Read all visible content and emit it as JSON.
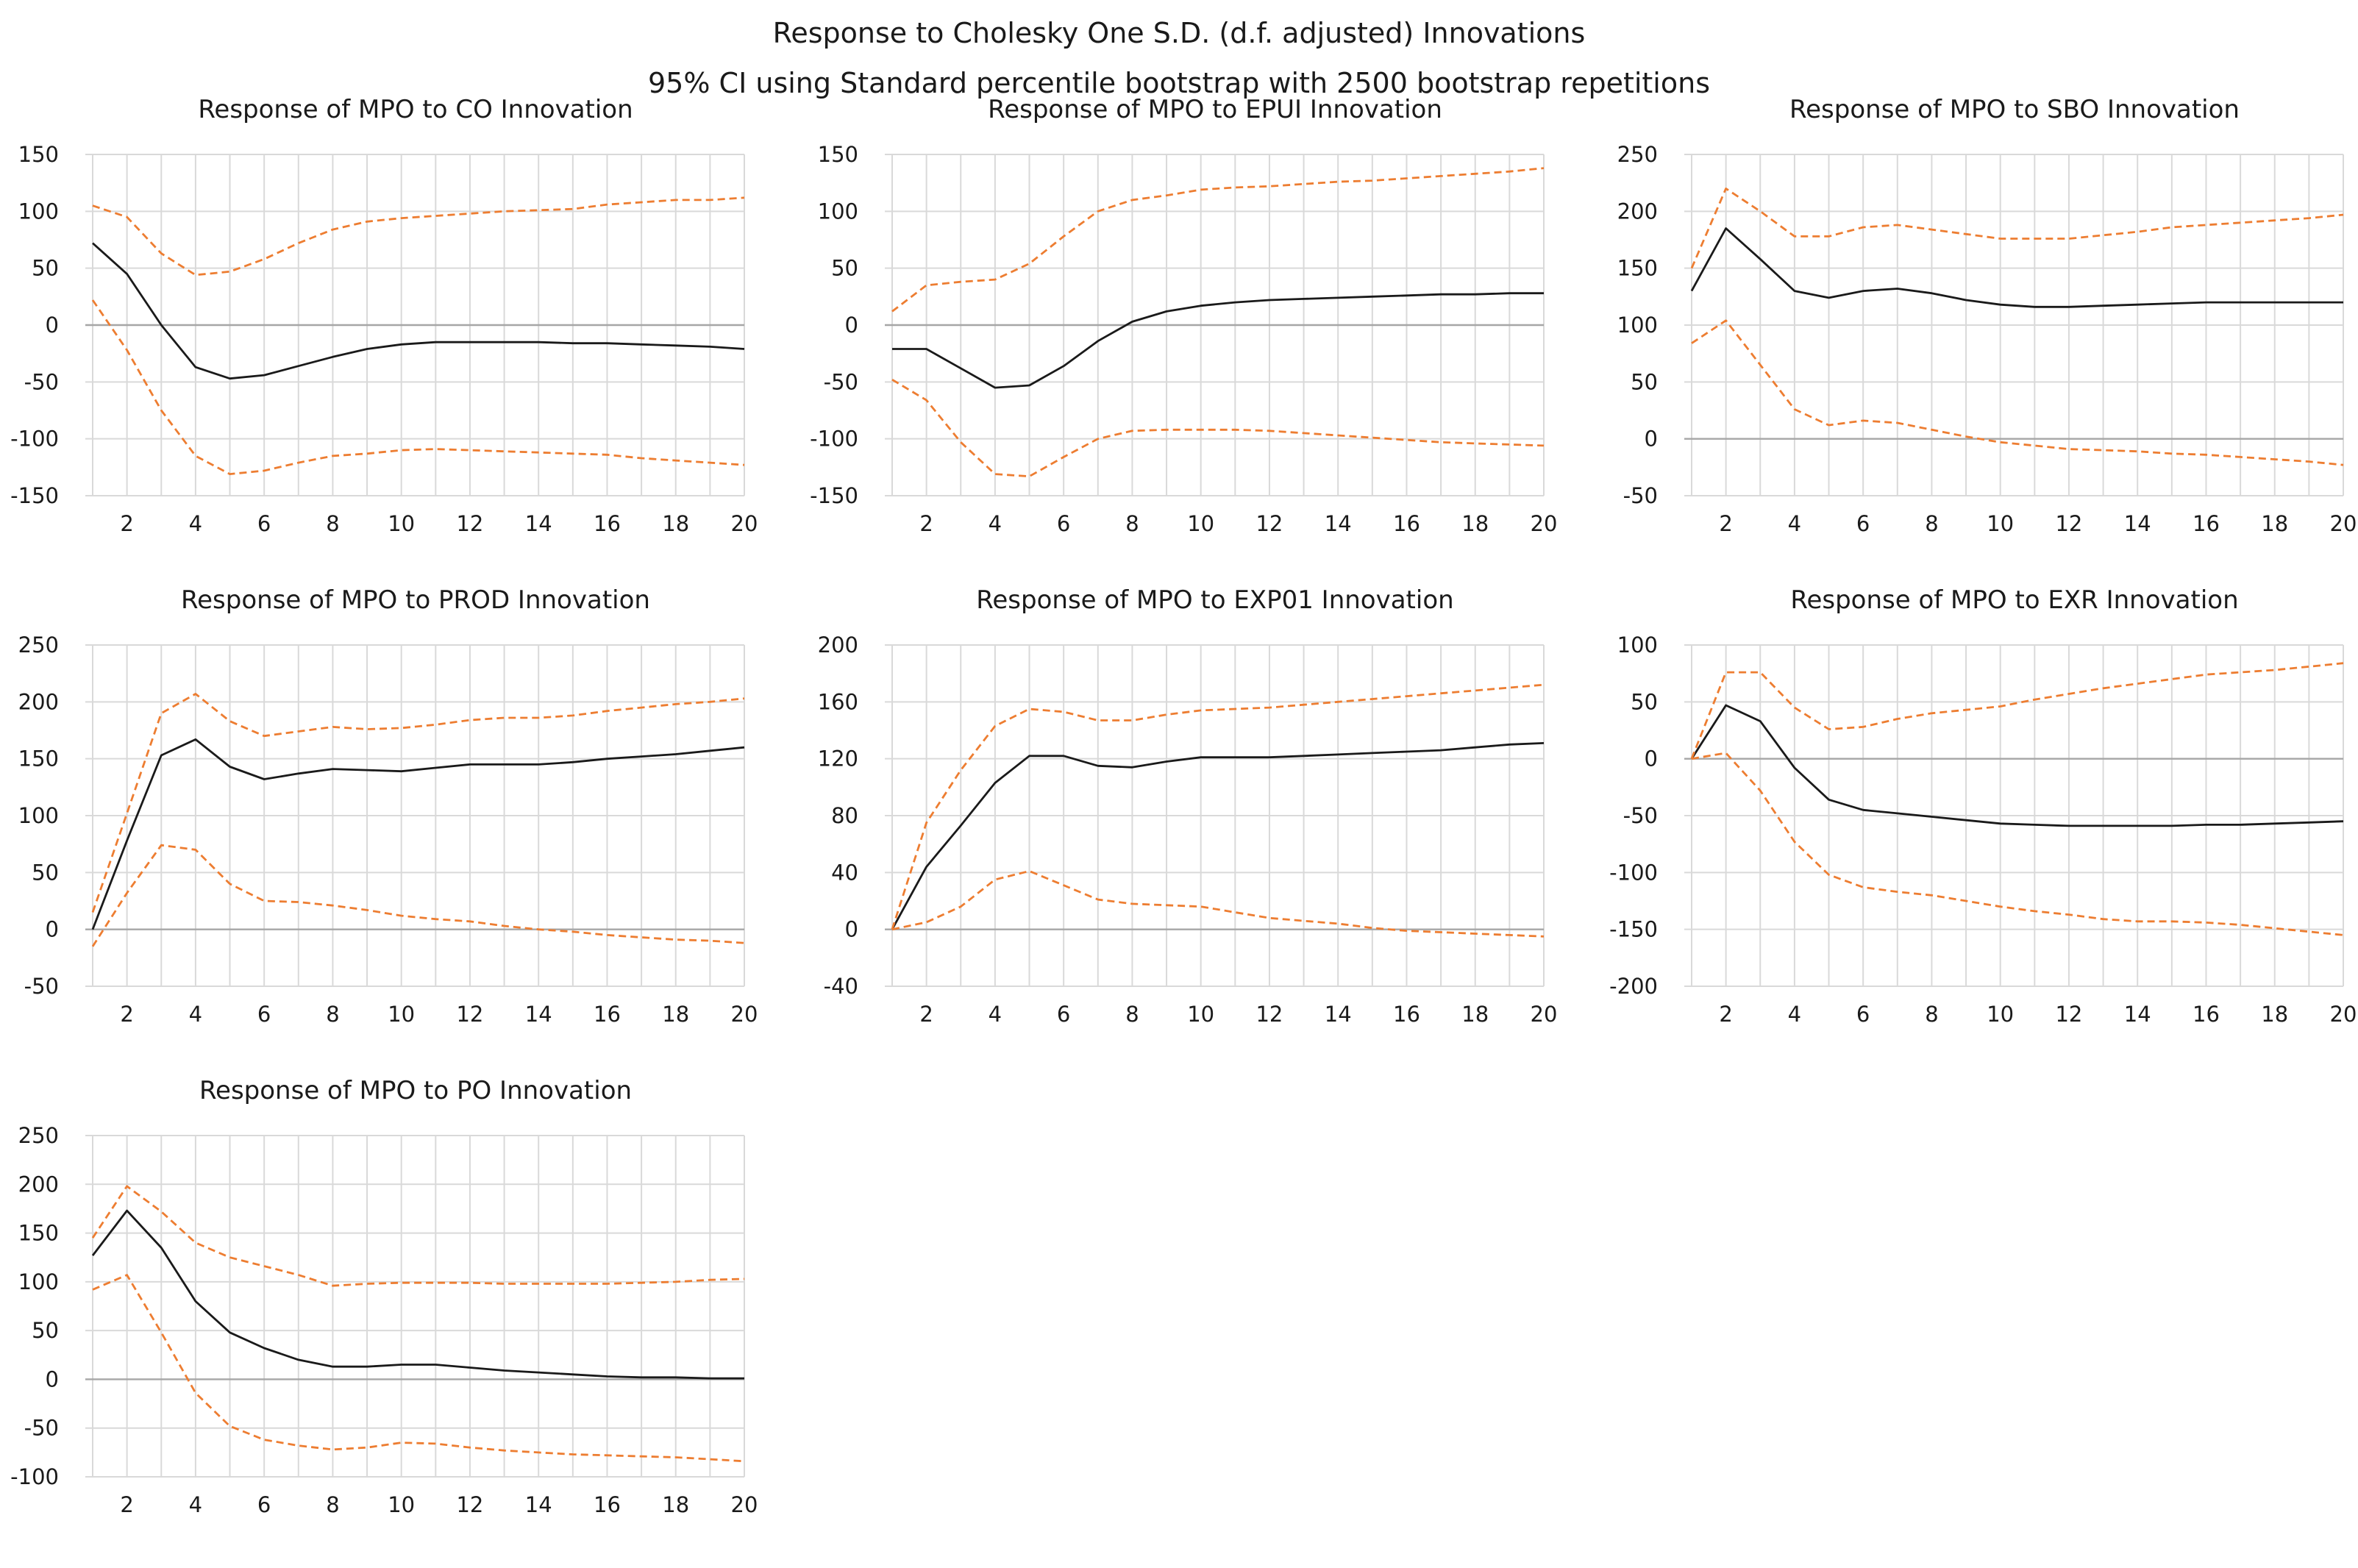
{
  "figure": {
    "title": "Response to Cholesky One S.D. (d.f. adjusted) Innovations",
    "subtitle": "95% CI using Standard percentile bootstrap with 2500 bootstrap repetitions",
    "colors": {
      "response": "#1a1a1a",
      "ci": "#ed7d31",
      "grid": "#d9d9d9",
      "zero": "#a6a6a6"
    }
  },
  "chart_data": [
    {
      "type": "line",
      "title": "Response of MPO to CO Innovation",
      "x": [
        1,
        2,
        3,
        4,
        5,
        6,
        7,
        8,
        9,
        10,
        11,
        12,
        13,
        14,
        15,
        16,
        17,
        18,
        19,
        20
      ],
      "x_ticks": [
        2,
        4,
        6,
        8,
        10,
        12,
        14,
        16,
        18,
        20
      ],
      "y_ticks": [
        150,
        100,
        50,
        0,
        -50,
        -100,
        -150
      ],
      "ylim": [
        -150,
        150
      ],
      "series": [
        {
          "name": "Response",
          "values": [
            72,
            45,
            0,
            -37,
            -47,
            -44,
            -36,
            -28,
            -21,
            -17,
            -15,
            -15,
            -15,
            -15,
            -16,
            -16,
            -17,
            -18,
            -19,
            -21
          ]
        },
        {
          "name": "Upper 95% CI",
          "values": [
            105,
            95,
            63,
            44,
            47,
            58,
            72,
            84,
            91,
            94,
            96,
            98,
            100,
            101,
            102,
            106,
            108,
            110,
            110,
            112
          ]
        },
        {
          "name": "Lower 95% CI",
          "values": [
            22,
            -22,
            -75,
            -115,
            -131,
            -128,
            -121,
            -115,
            -113,
            -110,
            -109,
            -110,
            -111,
            -112,
            -113,
            -114,
            -117,
            -119,
            -121,
            -123
          ]
        }
      ]
    },
    {
      "type": "line",
      "title": "Response of MPO to EPUI Innovation",
      "x": [
        1,
        2,
        3,
        4,
        5,
        6,
        7,
        8,
        9,
        10,
        11,
        12,
        13,
        14,
        15,
        16,
        17,
        18,
        19,
        20
      ],
      "x_ticks": [
        2,
        4,
        6,
        8,
        10,
        12,
        14,
        16,
        18,
        20
      ],
      "y_ticks": [
        150,
        100,
        50,
        0,
        -50,
        -100,
        -150
      ],
      "ylim": [
        -150,
        150
      ],
      "series": [
        {
          "name": "Response",
          "values": [
            -21,
            -21,
            -38,
            -55,
            -53,
            -36,
            -14,
            3,
            12,
            17,
            20,
            22,
            23,
            24,
            25,
            26,
            27,
            27,
            28,
            28
          ]
        },
        {
          "name": "Upper 95% CI",
          "values": [
            12,
            35,
            38,
            40,
            54,
            78,
            100,
            110,
            114,
            119,
            121,
            122,
            124,
            126,
            127,
            129,
            131,
            133,
            135,
            138
          ]
        },
        {
          "name": "Lower 95% CI",
          "values": [
            -48,
            -66,
            -103,
            -131,
            -133,
            -116,
            -100,
            -93,
            -92,
            -92,
            -92,
            -93,
            -95,
            -97,
            -99,
            -101,
            -103,
            -104,
            -105,
            -106
          ]
        }
      ]
    },
    {
      "type": "line",
      "title": "Response of MPO to SBO Innovation",
      "x": [
        1,
        2,
        3,
        4,
        5,
        6,
        7,
        8,
        9,
        10,
        11,
        12,
        13,
        14,
        15,
        16,
        17,
        18,
        19,
        20
      ],
      "x_ticks": [
        2,
        4,
        6,
        8,
        10,
        12,
        14,
        16,
        18,
        20
      ],
      "y_ticks": [
        250,
        200,
        150,
        100,
        50,
        0,
        -50
      ],
      "ylim": [
        -50,
        250
      ],
      "series": [
        {
          "name": "Response",
          "values": [
            130,
            185,
            158,
            130,
            124,
            130,
            132,
            128,
            122,
            118,
            116,
            116,
            117,
            118,
            119,
            120,
            120,
            120,
            120,
            120
          ]
        },
        {
          "name": "Upper 95% CI",
          "values": [
            150,
            220,
            200,
            178,
            178,
            186,
            188,
            184,
            180,
            176,
            176,
            176,
            179,
            182,
            186,
            188,
            190,
            192,
            194,
            197
          ]
        },
        {
          "name": "Lower 95% CI",
          "values": [
            84,
            104,
            65,
            26,
            12,
            16,
            14,
            8,
            2,
            -3,
            -6,
            -9,
            -10,
            -11,
            -13,
            -14,
            -16,
            -18,
            -20,
            -23
          ]
        }
      ]
    },
    {
      "type": "line",
      "title": "Response of MPO to PROD Innovation",
      "x": [
        1,
        2,
        3,
        4,
        5,
        6,
        7,
        8,
        9,
        10,
        11,
        12,
        13,
        14,
        15,
        16,
        17,
        18,
        19,
        20
      ],
      "x_ticks": [
        2,
        4,
        6,
        8,
        10,
        12,
        14,
        16,
        18,
        20
      ],
      "y_ticks": [
        250,
        200,
        150,
        100,
        50,
        0,
        -50
      ],
      "ylim": [
        -50,
        250
      ],
      "series": [
        {
          "name": "Response",
          "values": [
            0,
            78,
            153,
            167,
            143,
            132,
            137,
            141,
            140,
            139,
            142,
            145,
            145,
            145,
            147,
            150,
            152,
            154,
            157,
            160
          ]
        },
        {
          "name": "Upper 95% CI",
          "values": [
            15,
            102,
            190,
            207,
            183,
            170,
            174,
            178,
            176,
            177,
            180,
            184,
            186,
            186,
            188,
            192,
            195,
            198,
            200,
            203
          ]
        },
        {
          "name": "Lower 95% CI",
          "values": [
            -15,
            32,
            74,
            70,
            40,
            25,
            24,
            21,
            17,
            12,
            9,
            7,
            3,
            0,
            -2,
            -5,
            -7,
            -9,
            -10,
            -12
          ]
        }
      ]
    },
    {
      "type": "line",
      "title": "Response of MPO to EXP01 Innovation",
      "x": [
        1,
        2,
        3,
        4,
        5,
        6,
        7,
        8,
        9,
        10,
        11,
        12,
        13,
        14,
        15,
        16,
        17,
        18,
        19,
        20
      ],
      "x_ticks": [
        2,
        4,
        6,
        8,
        10,
        12,
        14,
        16,
        18,
        20
      ],
      "y_ticks": [
        200,
        160,
        120,
        80,
        40,
        0,
        -40
      ],
      "ylim": [
        -40,
        200
      ],
      "series": [
        {
          "name": "Response",
          "values": [
            0,
            44,
            73,
            103,
            122,
            122,
            115,
            114,
            118,
            121,
            121,
            121,
            122,
            123,
            124,
            125,
            126,
            128,
            130,
            131
          ]
        },
        {
          "name": "Upper 95% CI",
          "values": [
            0,
            75,
            112,
            143,
            155,
            153,
            147,
            147,
            151,
            154,
            155,
            156,
            158,
            160,
            162,
            164,
            166,
            168,
            170,
            172
          ]
        },
        {
          "name": "Lower 95% CI",
          "values": [
            0,
            5,
            16,
            35,
            41,
            31,
            21,
            18,
            17,
            16,
            12,
            8,
            6,
            4,
            1,
            -1,
            -2,
            -3,
            -4,
            -5
          ]
        }
      ]
    },
    {
      "type": "line",
      "title": "Response of MPO to EXR Innovation",
      "x": [
        1,
        2,
        3,
        4,
        5,
        6,
        7,
        8,
        9,
        10,
        11,
        12,
        13,
        14,
        15,
        16,
        17,
        18,
        19,
        20
      ],
      "x_ticks": [
        2,
        4,
        6,
        8,
        10,
        12,
        14,
        16,
        18,
        20
      ],
      "y_ticks": [
        100,
        50,
        0,
        -50,
        -100,
        -150,
        -200
      ],
      "ylim": [
        -200,
        100
      ],
      "series": [
        {
          "name": "Response",
          "values": [
            0,
            47,
            33,
            -8,
            -36,
            -45,
            -48,
            -51,
            -54,
            -57,
            -58,
            -59,
            -59,
            -59,
            -59,
            -58,
            -58,
            -57,
            -56,
            -55
          ]
        },
        {
          "name": "Upper 95% CI",
          "values": [
            0,
            76,
            76,
            45,
            26,
            28,
            35,
            40,
            43,
            46,
            52,
            57,
            62,
            66,
            70,
            74,
            76,
            78,
            81,
            84
          ]
        },
        {
          "name": "Lower 95% CI",
          "values": [
            0,
            5,
            -28,
            -73,
            -102,
            -113,
            -117,
            -120,
            -125,
            -130,
            -134,
            -137,
            -141,
            -143,
            -143,
            -144,
            -146,
            -149,
            -152,
            -155
          ]
        }
      ]
    },
    {
      "type": "line",
      "title": "Response of MPO to PO Innovation",
      "x": [
        1,
        2,
        3,
        4,
        5,
        6,
        7,
        8,
        9,
        10,
        11,
        12,
        13,
        14,
        15,
        16,
        17,
        18,
        19,
        20
      ],
      "x_ticks": [
        2,
        4,
        6,
        8,
        10,
        12,
        14,
        16,
        18,
        20
      ],
      "y_ticks": [
        250,
        200,
        150,
        100,
        50,
        0,
        -50,
        -100
      ],
      "ylim": [
        -100,
        250
      ],
      "series": [
        {
          "name": "Response",
          "values": [
            127,
            173,
            135,
            80,
            48,
            32,
            20,
            13,
            13,
            15,
            15,
            12,
            9,
            7,
            5,
            3,
            2,
            2,
            1,
            1
          ]
        },
        {
          "name": "Upper 95% CI",
          "values": [
            145,
            198,
            172,
            140,
            125,
            116,
            107,
            96,
            98,
            99,
            99,
            99,
            98,
            98,
            98,
            98,
            99,
            100,
            102,
            103
          ]
        },
        {
          "name": "Lower 95% CI",
          "values": [
            92,
            107,
            48,
            -14,
            -48,
            -62,
            -68,
            -72,
            -70,
            -65,
            -66,
            -70,
            -73,
            -75,
            -77,
            -78,
            -79,
            -80,
            -82,
            -84
          ]
        }
      ]
    }
  ]
}
